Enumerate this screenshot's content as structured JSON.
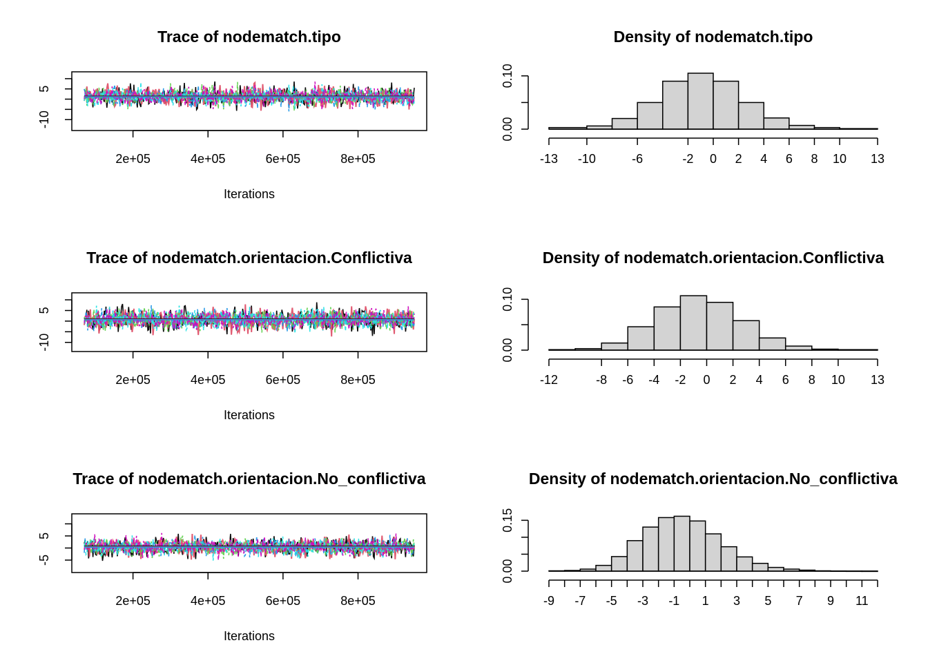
{
  "chart_data": [
    {
      "type": "line",
      "title": "Trace of nodematch.tipo",
      "xlabel": "Iterations",
      "ylabel": "",
      "xlim": [
        70000,
        950000
      ],
      "ylim": [
        -14,
        12
      ],
      "x_ticks": [
        200000,
        400000,
        600000,
        800000
      ],
      "x_tick_labels": [
        "2e+05",
        "4e+05",
        "6e+05",
        "8e+05"
      ],
      "y_ticks": [
        -10,
        -5,
        0,
        5,
        10
      ],
      "y_tick_labels": [
        "-10",
        "",
        "",
        "5",
        ""
      ],
      "series_colors": [
        "#000000",
        "#DF536B",
        "#61D04F",
        "#2297E6",
        "#28E2E5",
        "#CD0BBC"
      ],
      "center": 1.2,
      "spread": 3.8
    },
    {
      "type": "bar",
      "title": "Density of nodematch.tipo",
      "xlabel": "",
      "ylabel": "",
      "bin_edges": [
        -13,
        -10,
        -8,
        -6,
        -4,
        -2,
        0,
        2,
        4,
        6,
        8,
        10,
        13
      ],
      "values": [
        0.003,
        0.006,
        0.02,
        0.05,
        0.09,
        0.105,
        0.09,
        0.05,
        0.021,
        0.007,
        0.003,
        0.001
      ],
      "x_ticks": [
        -13,
        -10,
        -6,
        -2,
        0,
        2,
        4,
        6,
        8,
        10,
        13
      ],
      "x_tick_labels": [
        "-13",
        "-10",
        "-6",
        "-2",
        "0",
        "2",
        "4",
        "6",
        "8",
        "10",
        "13"
      ],
      "y_ticks": [
        0,
        0.05,
        0.1
      ],
      "y_tick_labels": [
        "0.00",
        "",
        "0.10"
      ],
      "ylim": [
        0,
        0.105
      ]
    },
    {
      "type": "line",
      "title": "Trace of nodematch.orientacion.Conflictiva",
      "xlabel": "Iterations",
      "ylabel": "",
      "xlim": [
        70000,
        950000
      ],
      "ylim": [
        -13,
        12
      ],
      "x_ticks": [
        200000,
        400000,
        600000,
        800000
      ],
      "x_tick_labels": [
        "2e+05",
        "4e+05",
        "6e+05",
        "8e+05"
      ],
      "y_ticks": [
        -10,
        -5,
        0,
        5,
        10
      ],
      "y_tick_labels": [
        "-10",
        "",
        "",
        "5",
        ""
      ],
      "series_colors": [
        "#000000",
        "#DF536B",
        "#61D04F",
        "#2297E6",
        "#28E2E5",
        "#CD0BBC"
      ],
      "center": 0.8,
      "spread": 4.0
    },
    {
      "type": "bar",
      "title": "Density of nodematch.orientacion.Conflictiva",
      "xlabel": "",
      "ylabel": "",
      "bin_edges": [
        -12,
        -10,
        -8,
        -6,
        -4,
        -2,
        0,
        2,
        4,
        6,
        8,
        10,
        13
      ],
      "values": [
        0.001,
        0.003,
        0.014,
        0.046,
        0.085,
        0.107,
        0.094,
        0.058,
        0.024,
        0.008,
        0.002,
        0.001
      ],
      "x_ticks": [
        -12,
        -8,
        -6,
        -4,
        -2,
        0,
        2,
        4,
        6,
        8,
        10,
        13
      ],
      "x_tick_labels": [
        "-12",
        "-8",
        "-6",
        "-4",
        "-2",
        "0",
        "2",
        "4",
        "6",
        "8",
        "10",
        "13"
      ],
      "y_ticks": [
        0,
        0.05,
        0.1
      ],
      "y_tick_labels": [
        "0.00",
        "",
        "0.10"
      ],
      "ylim": [
        0,
        0.11
      ]
    },
    {
      "type": "line",
      "title": "Trace of nodematch.orientacion.No_conflictiva",
      "xlabel": "Iterations",
      "ylabel": "",
      "xlim": [
        70000,
        950000
      ],
      "ylim": [
        -9,
        13
      ],
      "x_ticks": [
        200000,
        400000,
        600000,
        800000
      ],
      "x_tick_labels": [
        "2e+05",
        "4e+05",
        "6e+05",
        "8e+05"
      ],
      "y_ticks": [
        -5,
        0,
        5,
        10
      ],
      "y_tick_labels": [
        "-5",
        "",
        "5",
        ""
      ],
      "series_colors": [
        "#000000",
        "#DF536B",
        "#61D04F",
        "#2297E6",
        "#28E2E5",
        "#CD0BBC"
      ],
      "center": 0.5,
      "spread": 3.0
    },
    {
      "type": "bar",
      "title": "Density of nodematch.orientacion.No_conflictiva",
      "xlabel": "",
      "ylabel": "",
      "bin_edges": [
        -9,
        -8,
        -7,
        -6,
        -5,
        -4,
        -3,
        -2,
        -1,
        0,
        1,
        2,
        3,
        4,
        5,
        6,
        7,
        8,
        9,
        10,
        11,
        12
      ],
      "values": [
        0.001,
        0.002,
        0.006,
        0.017,
        0.043,
        0.09,
        0.13,
        0.158,
        0.162,
        0.148,
        0.11,
        0.072,
        0.042,
        0.023,
        0.011,
        0.006,
        0.003,
        0.001,
        0.0005,
        0.0003,
        0.0002
      ],
      "x_ticks": [
        -9,
        -8,
        -7,
        -6,
        -5,
        -4,
        -3,
        -2,
        -1,
        0,
        1,
        2,
        3,
        4,
        5,
        6,
        7,
        8,
        9,
        10,
        11,
        12
      ],
      "x_tick_labels": [
        "-9",
        "",
        "-7",
        "",
        "-5",
        "",
        "-3",
        "",
        "-1",
        "",
        "1",
        "",
        "3",
        "",
        "5",
        "",
        "7",
        "",
        "9",
        "",
        "11",
        ""
      ],
      "y_ticks": [
        0,
        0.05,
        0.1,
        0.15
      ],
      "y_tick_labels": [
        "0.00",
        "",
        "",
        "0.15"
      ],
      "ylim": [
        0,
        0.165
      ]
    }
  ]
}
